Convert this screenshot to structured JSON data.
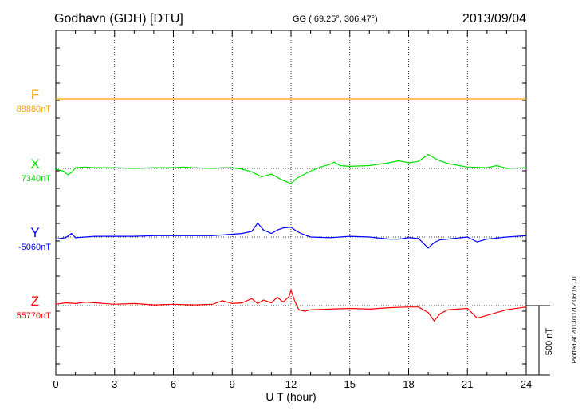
{
  "header": {
    "station": "Godhavn (GDH)  [DTU]",
    "coords": "GG ( 69.25°, 306.47°)",
    "date": "2013/09/04"
  },
  "plotted_note": "Plotted at 2013/11/12 06:15 UT",
  "scale_label": "500 nT",
  "chart_data": {
    "type": "line",
    "title": "Godhavn (GDH)  [DTU]",
    "xlabel": "U T (hour)",
    "xlim": [
      0,
      24
    ],
    "x_ticks": [
      0,
      3,
      6,
      9,
      12,
      15,
      18,
      21,
      24
    ],
    "grid": true,
    "scale_bar_nT": 500,
    "series": [
      {
        "name": "F",
        "baseline_label": "88880nT",
        "color": "#ffa500",
        "x": [
          0,
          1,
          2,
          3,
          4,
          5,
          6,
          7,
          8,
          9,
          10,
          11,
          12,
          13,
          14,
          15,
          16,
          17,
          18,
          19,
          20,
          21,
          22,
          23,
          24
        ],
        "values": [
          0,
          0,
          0,
          0,
          0,
          0,
          0,
          0,
          0,
          0,
          0,
          0,
          0,
          0,
          0,
          0,
          0,
          0,
          0,
          0,
          0,
          0,
          0,
          0,
          0
        ]
      },
      {
        "name": "X",
        "baseline_label": "7340nT",
        "color": "#00e000",
        "x": [
          0,
          0.4,
          0.6,
          0.8,
          1.0,
          1.5,
          2,
          3,
          4,
          5,
          6,
          6.5,
          7,
          8,
          8.5,
          9,
          9.5,
          10,
          10.5,
          11,
          11.5,
          12,
          12.3,
          12.7,
          13,
          13.5,
          14,
          14.2,
          14.5,
          15,
          16,
          17,
          17.5,
          18,
          18.5,
          19,
          19.3,
          19.6,
          20,
          21,
          22,
          22.5,
          23,
          24
        ],
        "values": [
          -5,
          -20,
          -45,
          -30,
          5,
          10,
          5,
          5,
          0,
          5,
          5,
          10,
          5,
          0,
          5,
          5,
          -5,
          -25,
          -60,
          -40,
          -80,
          -110,
          -70,
          -40,
          -20,
          10,
          30,
          45,
          20,
          15,
          20,
          40,
          55,
          40,
          50,
          100,
          75,
          55,
          35,
          10,
          5,
          20,
          0,
          5
        ]
      },
      {
        "name": "Y",
        "baseline_label": "-5060nT",
        "color": "#0000ff",
        "x": [
          0,
          0.5,
          0.8,
          1.0,
          1.5,
          2,
          3,
          4,
          5,
          6,
          7,
          8,
          9,
          9.5,
          10,
          10.3,
          10.6,
          11,
          11.3,
          11.6,
          12,
          12.3,
          12.6,
          13,
          14,
          15,
          16,
          17,
          17.5,
          18,
          18.5,
          19,
          19.3,
          19.6,
          20,
          21,
          21.5,
          22,
          23,
          24
        ],
        "values": [
          -15,
          -5,
          25,
          -5,
          0,
          5,
          5,
          5,
          10,
          10,
          10,
          10,
          20,
          25,
          40,
          100,
          50,
          25,
          50,
          65,
          70,
          40,
          20,
          0,
          -5,
          5,
          0,
          -15,
          -15,
          -5,
          -10,
          -80,
          -40,
          -20,
          -15,
          0,
          -35,
          -15,
          0,
          10
        ]
      },
      {
        "name": "Z",
        "baseline_label": "55770nT",
        "color": "#ff0000",
        "x": [
          0,
          0.5,
          1,
          1.5,
          2,
          3,
          4,
          5,
          6,
          7,
          8,
          8.5,
          9,
          9.5,
          10,
          10.3,
          10.6,
          11,
          11.3,
          11.6,
          11.9,
          12,
          12.2,
          12.4,
          12.7,
          13,
          14,
          15,
          16,
          17,
          18,
          18.5,
          19,
          19.3,
          19.6,
          20,
          21,
          21.5,
          22,
          23,
          24
        ],
        "values": [
          10,
          20,
          15,
          25,
          20,
          10,
          15,
          5,
          10,
          5,
          10,
          35,
          15,
          20,
          50,
          15,
          40,
          20,
          60,
          25,
          65,
          110,
          30,
          -30,
          -40,
          -30,
          -25,
          -20,
          -25,
          -15,
          -10,
          -10,
          -50,
          -110,
          -60,
          -30,
          -20,
          -90,
          -70,
          -30,
          -10
        ]
      }
    ]
  }
}
